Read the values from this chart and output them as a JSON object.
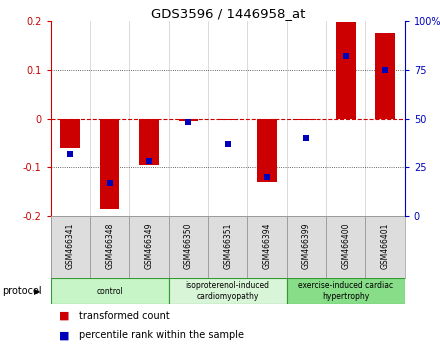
{
  "title": "GDS3596 / 1446958_at",
  "categories": [
    "GSM466341",
    "GSM466348",
    "GSM466349",
    "GSM466350",
    "GSM466351",
    "GSM466394",
    "GSM466399",
    "GSM466400",
    "GSM466401"
  ],
  "bar_values": [
    -0.06,
    -0.185,
    -0.095,
    -0.005,
    -0.003,
    -0.13,
    -0.003,
    0.198,
    0.175
  ],
  "dot_values": [
    32,
    17,
    28,
    48,
    37,
    20,
    40,
    82,
    75
  ],
  "ylim": [
    -0.2,
    0.2
  ],
  "y2lim": [
    0,
    100
  ],
  "yticks": [
    -0.2,
    -0.1,
    0.0,
    0.1,
    0.2
  ],
  "y2ticks": [
    0,
    25,
    50,
    75,
    100
  ],
  "ytick_labels": [
    "-0.2",
    "-0.1",
    "0",
    "0.1",
    "0.2"
  ],
  "y2tick_labels": [
    "0",
    "25",
    "50",
    "75",
    "100%"
  ],
  "bar_color": "#CC0000",
  "dot_color": "#0000BB",
  "hline_color": "#CC0000",
  "bg_color": "#ffffff",
  "groups": [
    {
      "label": "control",
      "span": [
        0,
        3
      ],
      "color": "#c8f5c8"
    },
    {
      "label": "isoproterenol-induced\ncardiomyopathy",
      "span": [
        3,
        6
      ],
      "color": "#d8f5d8"
    },
    {
      "label": "exercise-induced cardiac\nhypertrophy",
      "span": [
        6,
        9
      ],
      "color": "#88dd88"
    }
  ],
  "protocol_label": "protocol",
  "legend_items": [
    {
      "label": "transformed count",
      "color": "#CC0000"
    },
    {
      "label": "percentile rank within the sample",
      "color": "#0000BB"
    }
  ],
  "bar_width": 0.5,
  "dot_size": 25
}
